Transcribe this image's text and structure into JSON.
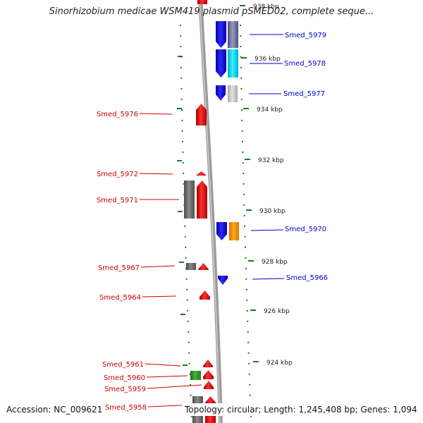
{
  "title": "Sinorhizobium medicae WSM419 plasmid pSMED02, complete seque...",
  "ticks": [
    {
      "label": "938 kbp"
    },
    {
      "label": "936 kbp"
    },
    {
      "label": "934 kbp"
    },
    {
      "label": "932 kbp"
    },
    {
      "label": "930 kbp"
    },
    {
      "label": "928 kbp"
    },
    {
      "label": "926 kbp"
    },
    {
      "label": "924 kbp"
    }
  ],
  "genes_right": [
    {
      "label": "Smed_5979"
    },
    {
      "label": "Smed_5978"
    },
    {
      "label": "Smed_5977"
    },
    {
      "label": "Smed_5970"
    },
    {
      "label": "Smed_5966"
    }
  ],
  "genes_left": [
    {
      "label": "Smed_5976"
    },
    {
      "label": "Smed_5972"
    },
    {
      "label": "Smed_5971"
    },
    {
      "label": "Smed_5967"
    },
    {
      "label": "Smed_5964"
    },
    {
      "label": "Smed_5961"
    },
    {
      "label": "Smed_5960"
    },
    {
      "label": "Smed_5959"
    },
    {
      "label": "Smed_5958"
    }
  ],
  "footer": {
    "accession": "Accession: NC_009621",
    "info": "Topology: circular; Length: 1,245,408 bp; Genes: 1,094"
  },
  "colors": {
    "forward": "#ff0000",
    "reverse": "#1010ee",
    "gray": "#6b6b6b",
    "light_gray": "#c8c8c8",
    "cyan": "#00e0ff",
    "orange": "#ff9800",
    "green": "#2e9e2e",
    "tick": "#1e7a1e",
    "left_label": "#cc0000",
    "right_label": "#0000cc"
  }
}
